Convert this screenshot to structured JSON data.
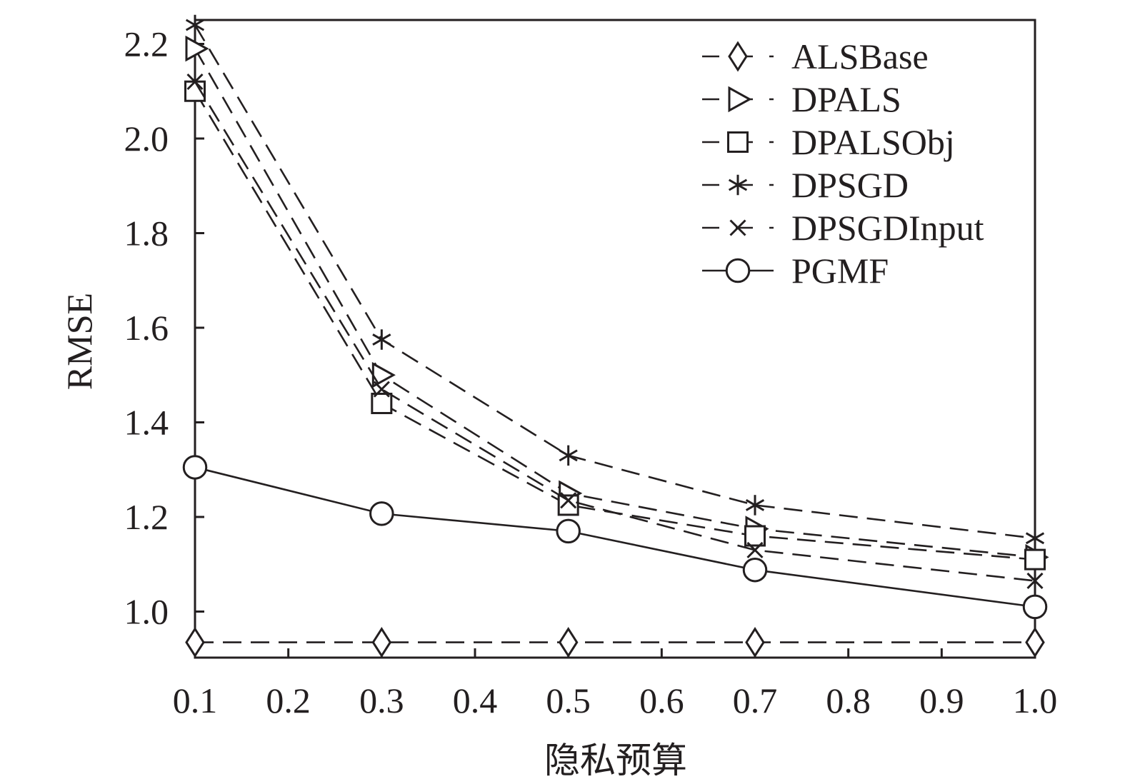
{
  "chart_data": {
    "type": "line",
    "xlabel": "隐私预算",
    "ylabel": "RMSE",
    "x": [
      0.1,
      0.3,
      0.5,
      0.7,
      1.0
    ],
    "xlim": [
      0.1,
      1.0
    ],
    "ylim": [
      0.9,
      2.25
    ],
    "xticks": [
      "0.1",
      "0.2",
      "0.3",
      "0.4",
      "0.5",
      "0.6",
      "0.7",
      "0.8",
      "0.9",
      "1.0"
    ],
    "yticks": [
      "1.0",
      "1.2",
      "1.4",
      "1.6",
      "1.8",
      "2.0",
      "2.2"
    ],
    "grid": false,
    "legend_position": "top-right",
    "series": [
      {
        "name": "ALSBase",
        "marker": "diamond",
        "dash": "dashed",
        "values": [
          0.935,
          0.935,
          0.935,
          0.935,
          0.935
        ]
      },
      {
        "name": "DPALS",
        "marker": "triangle-right",
        "dash": "dashed",
        "values": [
          2.19,
          1.5,
          1.25,
          1.175,
          1.115
        ]
      },
      {
        "name": "DPALSObj",
        "marker": "square",
        "dash": "dashed",
        "values": [
          2.1,
          1.44,
          1.225,
          1.16,
          1.11
        ]
      },
      {
        "name": "DPSGD",
        "marker": "asterisk",
        "dash": "dashed",
        "values": [
          2.24,
          1.575,
          1.33,
          1.225,
          1.155
        ]
      },
      {
        "name": "DPSGDInput",
        "marker": "x",
        "dash": "dashed",
        "values": [
          2.12,
          1.47,
          1.235,
          1.13,
          1.065
        ]
      },
      {
        "name": "PGMF",
        "marker": "circle",
        "dash": "solid",
        "values": [
          1.305,
          1.207,
          1.17,
          1.088,
          1.01
        ]
      }
    ],
    "colors": {
      "line": "#231f20",
      "background": "#ffffff"
    }
  }
}
